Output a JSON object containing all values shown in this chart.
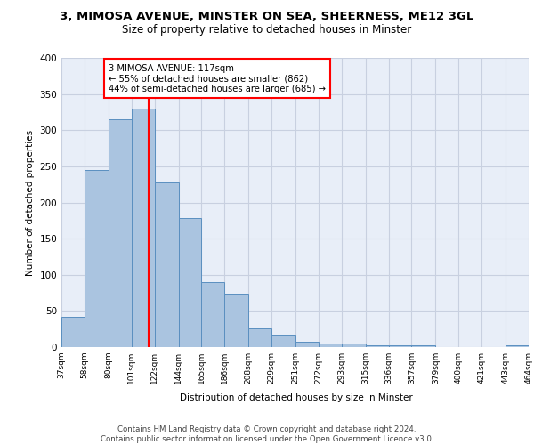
{
  "title1": "3, MIMOSA AVENUE, MINSTER ON SEA, SHEERNESS, ME12 3GL",
  "title2": "Size of property relative to detached houses in Minster",
  "xlabel": "Distribution of detached houses by size in Minster",
  "ylabel": "Number of detached properties",
  "bin_edges": [
    37,
    58,
    80,
    101,
    122,
    144,
    165,
    186,
    208,
    229,
    251,
    272,
    293,
    315,
    336,
    357,
    379,
    400,
    421,
    443,
    464
  ],
  "bin_counts": [
    42,
    245,
    315,
    330,
    228,
    179,
    90,
    74,
    26,
    17,
    8,
    5,
    5,
    3,
    3,
    3,
    0,
    0,
    0,
    3
  ],
  "property_size": 117,
  "bar_color": "#aac4e0",
  "bar_edge_color": "#5a8fc0",
  "red_line_x": 117,
  "annotation_text": "3 MIMOSA AVENUE: 117sqm\n← 55% of detached houses are smaller (862)\n44% of semi-detached houses are larger (685) →",
  "footer_text": "Contains HM Land Registry data © Crown copyright and database right 2024.\nContains public sector information licensed under the Open Government Licence v3.0.",
  "ylim": [
    0,
    400
  ],
  "bg_color": "#e8eef8",
  "plot_bg_color": "#ffffff",
  "grid_color": "#c8d0e0"
}
